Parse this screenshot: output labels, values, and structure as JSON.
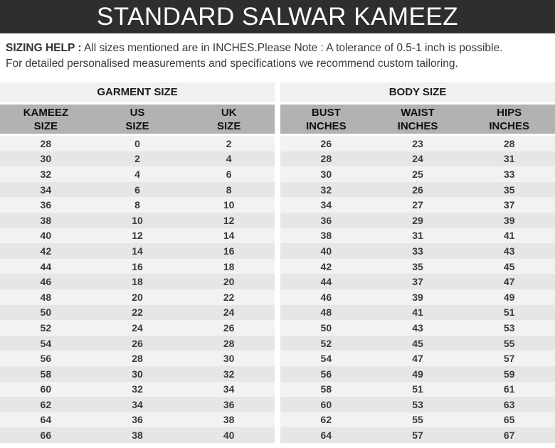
{
  "title": "STANDARD SALWAR KAMEEZ",
  "sizing_help": {
    "label": "SIZING HELP :",
    "line1_rest": " All sizes mentioned are in INCHES.Please Note : A tolerance of  0.5-1 inch is possible.",
    "line2": "For detailed personalised measurements and specifications  we recommend custom tailoring."
  },
  "tables": [
    {
      "group_header": "GARMENT SIZE",
      "columns": [
        {
          "line1": "KAMEEZ",
          "line2": "SIZE"
        },
        {
          "line1": "US",
          "line2": "SIZE"
        },
        {
          "line1": "UK",
          "line2": "SIZE"
        }
      ],
      "rows": [
        [
          28,
          0,
          2
        ],
        [
          30,
          2,
          4
        ],
        [
          32,
          4,
          6
        ],
        [
          34,
          6,
          8
        ],
        [
          36,
          8,
          10
        ],
        [
          38,
          10,
          12
        ],
        [
          40,
          12,
          14
        ],
        [
          42,
          14,
          16
        ],
        [
          44,
          16,
          18
        ],
        [
          46,
          18,
          20
        ],
        [
          48,
          20,
          22
        ],
        [
          50,
          22,
          24
        ],
        [
          52,
          24,
          26
        ],
        [
          54,
          26,
          28
        ],
        [
          56,
          28,
          30
        ],
        [
          58,
          30,
          32
        ],
        [
          60,
          32,
          34
        ],
        [
          62,
          34,
          36
        ],
        [
          64,
          36,
          38
        ],
        [
          66,
          38,
          40
        ]
      ]
    },
    {
      "group_header": "BODY SIZE",
      "columns": [
        {
          "line1": "BUST",
          "line2": "INCHES"
        },
        {
          "line1": "WAIST",
          "line2": "INCHES"
        },
        {
          "line1": "HIPS",
          "line2": "INCHES"
        }
      ],
      "rows": [
        [
          26,
          23,
          28
        ],
        [
          28,
          24,
          31
        ],
        [
          30,
          25,
          33
        ],
        [
          32,
          26,
          35
        ],
        [
          34,
          27,
          37
        ],
        [
          36,
          29,
          39
        ],
        [
          38,
          31,
          41
        ],
        [
          40,
          33,
          43
        ],
        [
          42,
          35,
          45
        ],
        [
          44,
          37,
          47
        ],
        [
          46,
          39,
          49
        ],
        [
          48,
          41,
          51
        ],
        [
          50,
          43,
          53
        ],
        [
          52,
          45,
          55
        ],
        [
          54,
          47,
          57
        ],
        [
          56,
          49,
          59
        ],
        [
          58,
          51,
          61
        ],
        [
          60,
          53,
          63
        ],
        [
          62,
          55,
          65
        ],
        [
          64,
          57,
          67
        ]
      ]
    }
  ],
  "colors": {
    "header_bar_bg": "#2e2e2e",
    "header_bar_text": "#ffffff",
    "body_text": "#3a3a3a",
    "group_header_bg": "#f0f0f0",
    "subheader_bg": "#b2b2b2",
    "row_odd_bg": "#f2f2f2",
    "row_even_bg": "#e6e6e6"
  }
}
